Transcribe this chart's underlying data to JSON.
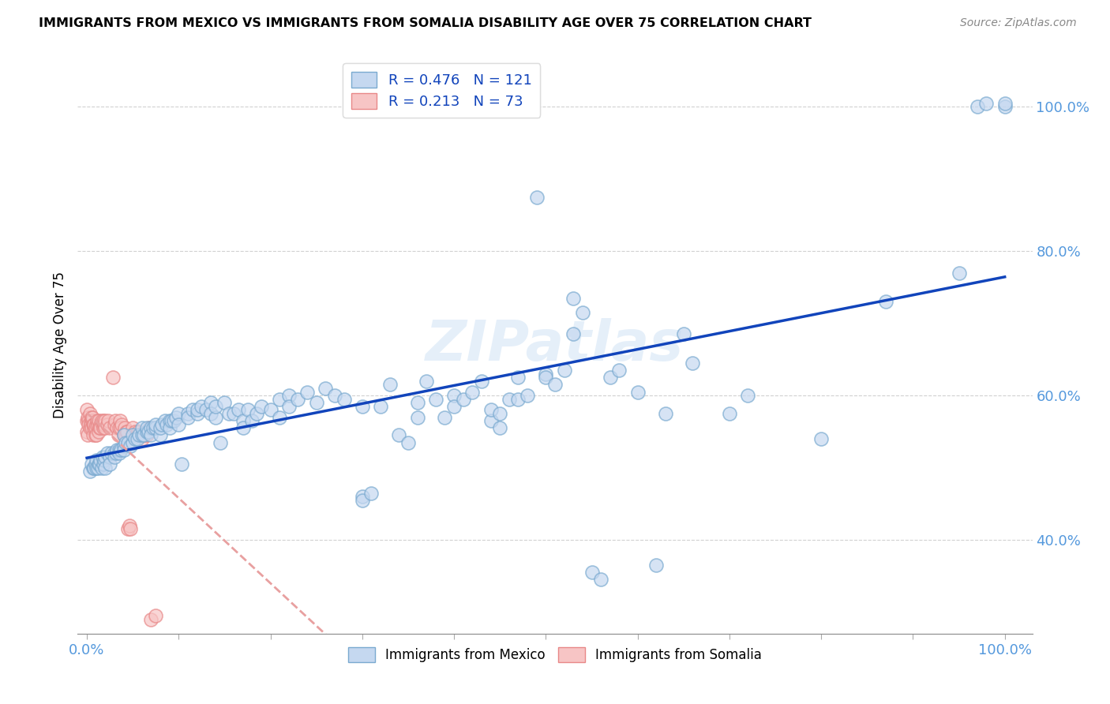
{
  "title": "IMMIGRANTS FROM MEXICO VS IMMIGRANTS FROM SOMALIA DISABILITY AGE OVER 75 CORRELATION CHART",
  "source": "Source: ZipAtlas.com",
  "ylabel": "Disability Age Over 75",
  "watermark": "ZIPatlas",
  "mexico_color_face": "#c5d8f0",
  "mexico_color_edge": "#7aaad0",
  "somalia_color_face": "#f7c5c5",
  "somalia_color_edge": "#e88888",
  "mexico_line_color": "#1144bb",
  "somalia_line_color": "#e8a0a0",
  "tick_color": "#5599dd",
  "ytick_positions": [
    0.4,
    0.6,
    0.8,
    1.0
  ],
  "ytick_labels": [
    "40.0%",
    "60.0%",
    "80.0%",
    "100.0%"
  ],
  "xtick_positions": [
    0.0,
    0.1,
    0.2,
    0.3,
    0.4,
    0.5,
    0.6,
    0.7,
    0.8,
    0.9,
    1.0
  ],
  "xlim": [
    -0.01,
    1.03
  ],
  "ylim": [
    0.27,
    1.07
  ],
  "mexico_points": [
    [
      0.003,
      0.495
    ],
    [
      0.005,
      0.505
    ],
    [
      0.007,
      0.5
    ],
    [
      0.008,
      0.5
    ],
    [
      0.009,
      0.505
    ],
    [
      0.01,
      0.51
    ],
    [
      0.01,
      0.5
    ],
    [
      0.012,
      0.5
    ],
    [
      0.013,
      0.505
    ],
    [
      0.014,
      0.505
    ],
    [
      0.015,
      0.51
    ],
    [
      0.016,
      0.5
    ],
    [
      0.017,
      0.515
    ],
    [
      0.018,
      0.505
    ],
    [
      0.019,
      0.51
    ],
    [
      0.02,
      0.515
    ],
    [
      0.02,
      0.5
    ],
    [
      0.022,
      0.52
    ],
    [
      0.025,
      0.515
    ],
    [
      0.025,
      0.505
    ],
    [
      0.027,
      0.52
    ],
    [
      0.03,
      0.52
    ],
    [
      0.03,
      0.515
    ],
    [
      0.032,
      0.52
    ],
    [
      0.033,
      0.525
    ],
    [
      0.035,
      0.525
    ],
    [
      0.035,
      0.52
    ],
    [
      0.037,
      0.525
    ],
    [
      0.04,
      0.53
    ],
    [
      0.04,
      0.525
    ],
    [
      0.04,
      0.545
    ],
    [
      0.042,
      0.535
    ],
    [
      0.045,
      0.535
    ],
    [
      0.047,
      0.53
    ],
    [
      0.05,
      0.535
    ],
    [
      0.05,
      0.545
    ],
    [
      0.052,
      0.54
    ],
    [
      0.055,
      0.54
    ],
    [
      0.057,
      0.545
    ],
    [
      0.06,
      0.545
    ],
    [
      0.06,
      0.555
    ],
    [
      0.062,
      0.545
    ],
    [
      0.065,
      0.55
    ],
    [
      0.065,
      0.555
    ],
    [
      0.067,
      0.55
    ],
    [
      0.07,
      0.555
    ],
    [
      0.07,
      0.545
    ],
    [
      0.072,
      0.555
    ],
    [
      0.075,
      0.555
    ],
    [
      0.075,
      0.56
    ],
    [
      0.08,
      0.545
    ],
    [
      0.08,
      0.555
    ],
    [
      0.082,
      0.56
    ],
    [
      0.085,
      0.565
    ],
    [
      0.087,
      0.56
    ],
    [
      0.09,
      0.565
    ],
    [
      0.09,
      0.555
    ],
    [
      0.092,
      0.565
    ],
    [
      0.095,
      0.565
    ],
    [
      0.097,
      0.57
    ],
    [
      0.1,
      0.575
    ],
    [
      0.1,
      0.56
    ],
    [
      0.103,
      0.505
    ],
    [
      0.11,
      0.575
    ],
    [
      0.11,
      0.57
    ],
    [
      0.115,
      0.58
    ],
    [
      0.12,
      0.575
    ],
    [
      0.12,
      0.58
    ],
    [
      0.125,
      0.585
    ],
    [
      0.13,
      0.58
    ],
    [
      0.135,
      0.59
    ],
    [
      0.135,
      0.575
    ],
    [
      0.14,
      0.57
    ],
    [
      0.14,
      0.585
    ],
    [
      0.145,
      0.535
    ],
    [
      0.15,
      0.59
    ],
    [
      0.155,
      0.575
    ],
    [
      0.16,
      0.575
    ],
    [
      0.165,
      0.58
    ],
    [
      0.17,
      0.565
    ],
    [
      0.17,
      0.555
    ],
    [
      0.175,
      0.58
    ],
    [
      0.18,
      0.565
    ],
    [
      0.185,
      0.575
    ],
    [
      0.19,
      0.585
    ],
    [
      0.2,
      0.58
    ],
    [
      0.21,
      0.595
    ],
    [
      0.21,
      0.57
    ],
    [
      0.22,
      0.6
    ],
    [
      0.22,
      0.585
    ],
    [
      0.23,
      0.595
    ],
    [
      0.24,
      0.605
    ],
    [
      0.25,
      0.59
    ],
    [
      0.26,
      0.61
    ],
    [
      0.27,
      0.6
    ],
    [
      0.28,
      0.595
    ],
    [
      0.3,
      0.46
    ],
    [
      0.3,
      0.455
    ],
    [
      0.3,
      0.585
    ],
    [
      0.31,
      0.465
    ],
    [
      0.32,
      0.585
    ],
    [
      0.33,
      0.615
    ],
    [
      0.34,
      0.545
    ],
    [
      0.35,
      0.535
    ],
    [
      0.36,
      0.59
    ],
    [
      0.36,
      0.57
    ],
    [
      0.37,
      0.62
    ],
    [
      0.38,
      0.595
    ],
    [
      0.39,
      0.57
    ],
    [
      0.4,
      0.6
    ],
    [
      0.4,
      0.585
    ],
    [
      0.41,
      0.595
    ],
    [
      0.42,
      0.605
    ],
    [
      0.43,
      0.62
    ],
    [
      0.44,
      0.565
    ],
    [
      0.44,
      0.58
    ],
    [
      0.45,
      0.575
    ],
    [
      0.45,
      0.555
    ],
    [
      0.46,
      0.595
    ],
    [
      0.47,
      0.595
    ],
    [
      0.47,
      0.625
    ],
    [
      0.48,
      0.6
    ],
    [
      0.49,
      0.875
    ],
    [
      0.5,
      0.63
    ],
    [
      0.5,
      0.625
    ],
    [
      0.51,
      0.615
    ],
    [
      0.52,
      0.635
    ],
    [
      0.53,
      0.685
    ],
    [
      0.53,
      0.735
    ],
    [
      0.54,
      0.715
    ],
    [
      0.55,
      0.355
    ],
    [
      0.56,
      0.345
    ],
    [
      0.57,
      0.625
    ],
    [
      0.58,
      0.635
    ],
    [
      0.6,
      0.605
    ],
    [
      0.62,
      0.365
    ],
    [
      0.63,
      0.575
    ],
    [
      0.65,
      0.685
    ],
    [
      0.66,
      0.645
    ],
    [
      0.7,
      0.575
    ],
    [
      0.72,
      0.6
    ],
    [
      0.8,
      0.54
    ],
    [
      0.87,
      0.73
    ],
    [
      0.95,
      0.77
    ],
    [
      0.97,
      1.0
    ],
    [
      0.98,
      1.005
    ],
    [
      1.0,
      1.0
    ],
    [
      1.0,
      1.005
    ]
  ],
  "somalia_points": [
    [
      0.0,
      0.58
    ],
    [
      0.0,
      0.565
    ],
    [
      0.0,
      0.55
    ],
    [
      0.001,
      0.57
    ],
    [
      0.001,
      0.545
    ],
    [
      0.002,
      0.565
    ],
    [
      0.002,
      0.56
    ],
    [
      0.003,
      0.575
    ],
    [
      0.003,
      0.555
    ],
    [
      0.004,
      0.565
    ],
    [
      0.004,
      0.56
    ],
    [
      0.005,
      0.57
    ],
    [
      0.005,
      0.555
    ],
    [
      0.006,
      0.565
    ],
    [
      0.006,
      0.57
    ],
    [
      0.007,
      0.56
    ],
    [
      0.007,
      0.545
    ],
    [
      0.008,
      0.555
    ],
    [
      0.008,
      0.56
    ],
    [
      0.009,
      0.545
    ],
    [
      0.009,
      0.555
    ],
    [
      0.01,
      0.56
    ],
    [
      0.01,
      0.545
    ],
    [
      0.011,
      0.565
    ],
    [
      0.012,
      0.56
    ],
    [
      0.013,
      0.55
    ],
    [
      0.013,
      0.565
    ],
    [
      0.014,
      0.555
    ],
    [
      0.015,
      0.56
    ],
    [
      0.015,
      0.555
    ],
    [
      0.016,
      0.565
    ],
    [
      0.017,
      0.56
    ],
    [
      0.018,
      0.555
    ],
    [
      0.018,
      0.565
    ],
    [
      0.019,
      0.56
    ],
    [
      0.02,
      0.555
    ],
    [
      0.02,
      0.565
    ],
    [
      0.022,
      0.56
    ],
    [
      0.023,
      0.565
    ],
    [
      0.025,
      0.555
    ],
    [
      0.028,
      0.625
    ],
    [
      0.03,
      0.56
    ],
    [
      0.031,
      0.565
    ],
    [
      0.033,
      0.555
    ],
    [
      0.034,
      0.545
    ],
    [
      0.035,
      0.555
    ],
    [
      0.036,
      0.565
    ],
    [
      0.037,
      0.555
    ],
    [
      0.038,
      0.56
    ],
    [
      0.04,
      0.545
    ],
    [
      0.041,
      0.555
    ],
    [
      0.042,
      0.545
    ],
    [
      0.043,
      0.55
    ],
    [
      0.044,
      0.55
    ],
    [
      0.045,
      0.415
    ],
    [
      0.046,
      0.42
    ],
    [
      0.047,
      0.415
    ],
    [
      0.05,
      0.555
    ],
    [
      0.051,
      0.545
    ],
    [
      0.052,
      0.55
    ],
    [
      0.053,
      0.545
    ],
    [
      0.054,
      0.545
    ],
    [
      0.055,
      0.545
    ],
    [
      0.056,
      0.55
    ],
    [
      0.057,
      0.545
    ],
    [
      0.06,
      0.54
    ],
    [
      0.062,
      0.545
    ],
    [
      0.064,
      0.545
    ],
    [
      0.065,
      0.545
    ],
    [
      0.068,
      0.555
    ],
    [
      0.07,
      0.29
    ],
    [
      0.075,
      0.295
    ]
  ]
}
